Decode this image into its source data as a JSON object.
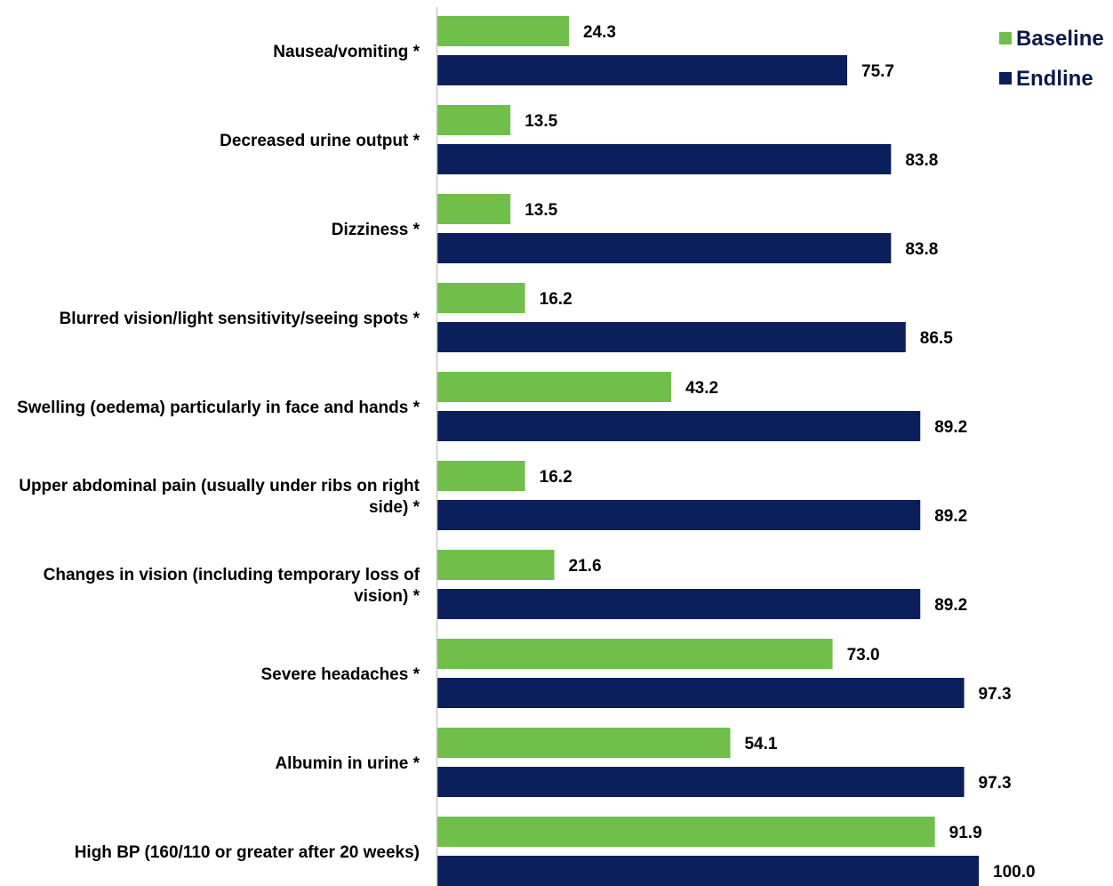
{
  "chart_data": {
    "type": "bar",
    "orientation": "horizontal",
    "categories": [
      [
        "Nausea/vomiting *"
      ],
      [
        "Decreased urine output *"
      ],
      [
        "Dizziness *"
      ],
      [
        "Blurred vision/light sensitivity/seeing spots *"
      ],
      [
        "Swelling (oedema) particularly in face and hands *"
      ],
      [
        "Upper abdominal pain (usually under ribs on right",
        "side) *"
      ],
      [
        "Changes in vision (including temporary loss of",
        "vision) *"
      ],
      [
        "Severe headaches *"
      ],
      [
        "Albumin in urine *"
      ],
      [
        "High BP (160/110 or greater after 20 weeks)"
      ]
    ],
    "series": [
      {
        "name": "Baseline",
        "color": "#70bf4b",
        "values": [
          24.3,
          13.5,
          13.5,
          16.2,
          43.2,
          16.2,
          21.6,
          73.0,
          54.1,
          91.9
        ],
        "labels": [
          "24.3",
          "13.5",
          "13.5",
          "16.2",
          "43.2",
          "16.2",
          "21.6",
          "73.0",
          "54.1",
          "91.9"
        ]
      },
      {
        "name": "Endline",
        "color": "#0a1f5c",
        "values": [
          75.7,
          83.8,
          83.8,
          86.5,
          89.2,
          89.2,
          89.2,
          97.3,
          97.3,
          100.0
        ],
        "labels": [
          "75.7",
          "83.8",
          "83.8",
          "86.5",
          "89.2",
          "89.2",
          "89.2",
          "97.3",
          "97.3",
          "100.0"
        ]
      }
    ],
    "xlim": [
      0,
      100
    ],
    "grid": false,
    "legend_position": "top-right",
    "title": "",
    "xlabel": "",
    "ylabel": ""
  }
}
